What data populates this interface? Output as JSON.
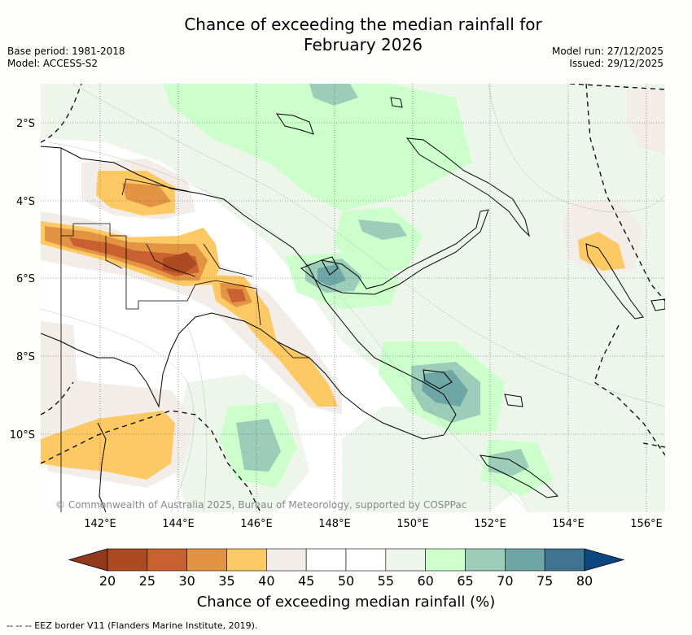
{
  "title_line1": "Chance of exceeding the median rainfall for",
  "title_line2": "February 2026",
  "base_period": "Base period: 1981-2018",
  "model": "Model: ACCESS-S2",
  "model_run": "Model run: 27/12/2025",
  "issued": "Issued: 29/12/2025",
  "lat_labels": [
    "2°S",
    "4°S",
    "6°S",
    "8°S",
    "10°S"
  ],
  "lon_labels": [
    "142°E",
    "144°E",
    "146°E",
    "148°E",
    "150°E",
    "152°E",
    "154°E",
    "156°E"
  ],
  "copyright": "© Commonwealth of Australia 2025, Bureau of Meteorology, supported by COSPPac",
  "colorbar": {
    "labels": [
      "20",
      "25",
      "30",
      "35",
      "40",
      "45",
      "50",
      "55",
      "60",
      "65",
      "70",
      "75",
      "80"
    ],
    "colors": [
      "#ad4a22",
      "#c8602f",
      "#e29443",
      "#fdc965",
      "#f2ede8",
      "#ffffff",
      "#ffffff",
      "#eef6ec",
      "#ccffcc",
      "#9bcdb9",
      "#6ea6a6",
      "#3e7393",
      "#0d4782"
    ],
    "low_extend_color": "#93391b",
    "high_extend_color": "#0d4782",
    "title": "Chance of exceeding median rainfall (%)"
  },
  "legend_footnote": "--  --  -- EEZ border V11 (Flanders Marine Institute, 2019)."
}
